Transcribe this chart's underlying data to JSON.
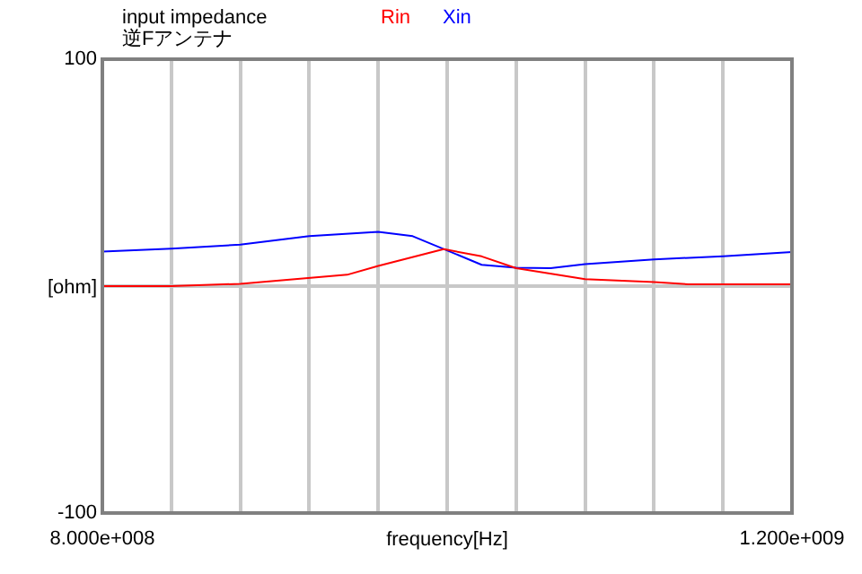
{
  "chart_data": {
    "type": "line",
    "title": "input impedance",
    "subtitle": "逆Fアンテナ",
    "xlabel": "frequency[Hz]",
    "ylabel": "[ohm]",
    "xlim": [
      800000000,
      1200000000
    ],
    "xticks": [
      {
        "value": 800000000,
        "label": "8.000e+008"
      },
      {
        "value": 840000000,
        "label": null
      },
      {
        "value": 880000000,
        "label": null
      },
      {
        "value": 920000000,
        "label": null
      },
      {
        "value": 960000000,
        "label": null
      },
      {
        "value": 1000000000,
        "label": null
      },
      {
        "value": 1040000000,
        "label": null
      },
      {
        "value": 1080000000,
        "label": null
      },
      {
        "value": 1120000000,
        "label": null
      },
      {
        "value": 1160000000,
        "label": null
      },
      {
        "value": 1200000000,
        "label": "1.200e+009"
      }
    ],
    "ylim": [
      -100,
      100
    ],
    "yticks": [
      -100,
      {
        "value": 0,
        "label": null
      },
      100
    ],
    "grid": true,
    "legend": "top",
    "marker": "none",
    "line_style": "solid",
    "series": [
      {
        "name": "Rin",
        "color": "#ff0000",
        "x": [
          800000000,
          840000000,
          880000000,
          942000000,
          960000000,
          998000000,
          1020000000,
          1040000000,
          1080000000,
          1120000000,
          1140000000,
          1200000000
        ],
        "values": [
          0,
          0,
          1,
          5,
          8.9,
          16.3,
          13.1,
          7.9,
          3.1,
          1.8,
          0.8,
          0.8
        ]
      },
      {
        "name": "Xin",
        "color": "#0000ff",
        "x": [
          800000000,
          840000000,
          880000000,
          920000000,
          960000000,
          980000000,
          1020000000,
          1040000000,
          1060000000,
          1080000000,
          1120000000,
          1160000000,
          1200000000
        ],
        "values": [
          15.2,
          16.5,
          18.3,
          22,
          23.9,
          22,
          9.4,
          8.1,
          7.9,
          9.7,
          11.8,
          13.1,
          15
        ]
      }
    ]
  }
}
